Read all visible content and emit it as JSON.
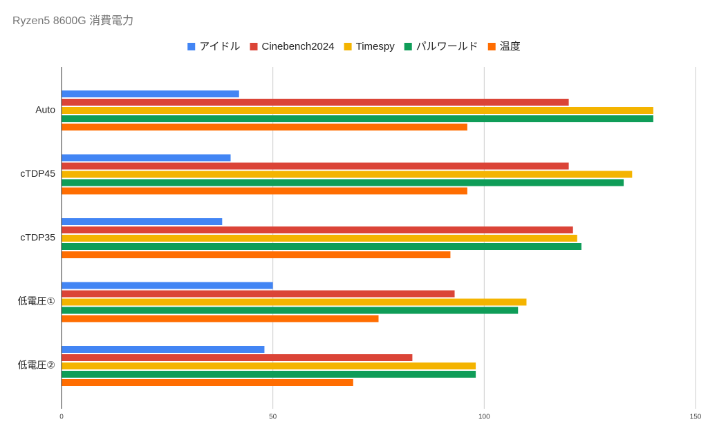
{
  "chart_data": {
    "type": "hbar",
    "title": "Ryzen5 8600G 消費電力",
    "categories": [
      "Auto",
      "cTDP45",
      "cTDP35",
      "低電圧①",
      "低電圧②"
    ],
    "series": [
      {
        "name": "アイドル",
        "color": "#4285f4",
        "values": [
          42,
          40,
          38,
          50,
          48
        ]
      },
      {
        "name": "Cinebench2024",
        "color": "#db4437",
        "values": [
          120,
          120,
          121,
          93,
          83
        ]
      },
      {
        "name": "Timespy",
        "color": "#f4b400",
        "values": [
          140,
          135,
          122,
          110,
          98
        ]
      },
      {
        "name": "パルワールド",
        "color": "#0f9d58",
        "values": [
          140,
          133,
          123,
          108,
          98
        ]
      },
      {
        "name": "温度",
        "color": "#ff6d01",
        "values": [
          96,
          96,
          92,
          75,
          69
        ]
      }
    ],
    "xlim": [
      0,
      150
    ],
    "xticks": [
      0,
      50,
      100,
      150
    ],
    "grid": true,
    "legend": "top"
  }
}
